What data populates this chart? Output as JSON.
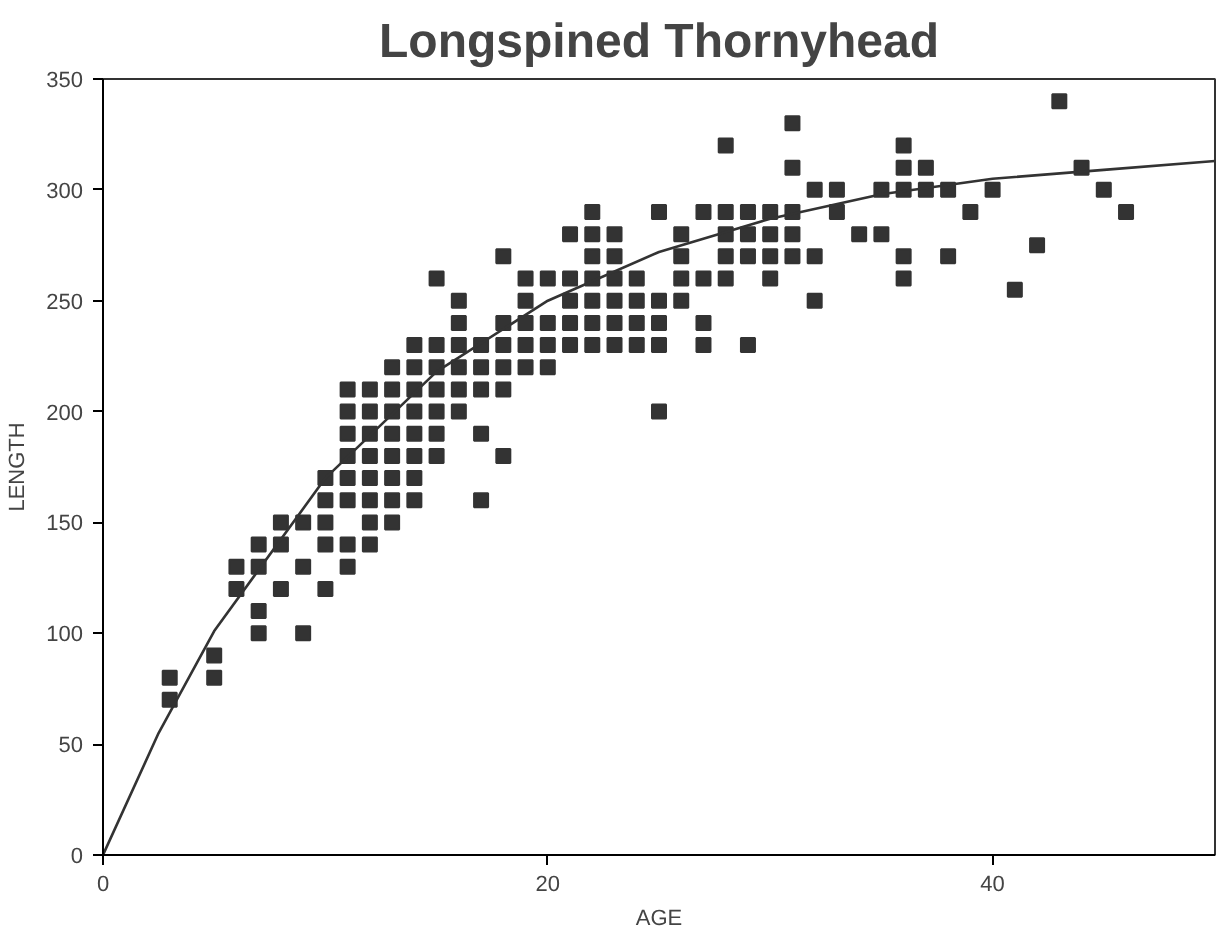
{
  "chart_data": {
    "type": "scatter",
    "title": "Longspined Thornyhead",
    "xlabel": "AGE",
    "ylabel": "LENGTH",
    "xlim": [
      0,
      50
    ],
    "ylim": [
      0,
      350
    ],
    "xticks": [
      0,
      20,
      40
    ],
    "yticks": [
      0,
      50,
      100,
      150,
      200,
      250,
      300,
      350
    ],
    "grid": false,
    "marker": "square",
    "series": [
      {
        "color": "#333333",
        "x": [
          3,
          3,
          5,
          5,
          6,
          6,
          7,
          7,
          7,
          7,
          8,
          8,
          8,
          9,
          9,
          9,
          10,
          10,
          10,
          10,
          10,
          11,
          11,
          11,
          11,
          11,
          11,
          11,
          11,
          12,
          12,
          12,
          12,
          12,
          12,
          12,
          12,
          13,
          13,
          13,
          13,
          13,
          13,
          13,
          13,
          14,
          14,
          14,
          14,
          14,
          14,
          14,
          14,
          15,
          15,
          15,
          15,
          15,
          15,
          15,
          16,
          16,
          16,
          16,
          16,
          16,
          17,
          17,
          17,
          17,
          17,
          18,
          18,
          18,
          18,
          18,
          18,
          19,
          19,
          19,
          19,
          19,
          20,
          20,
          20,
          20,
          21,
          21,
          21,
          21,
          21,
          22,
          22,
          22,
          22,
          22,
          22,
          22,
          23,
          23,
          23,
          23,
          23,
          23,
          24,
          24,
          24,
          24,
          25,
          25,
          25,
          25,
          25,
          26,
          26,
          26,
          26,
          27,
          27,
          27,
          27,
          28,
          28,
          28,
          28,
          28,
          29,
          29,
          29,
          29,
          30,
          30,
          30,
          30,
          31,
          31,
          31,
          31,
          31,
          32,
          32,
          32,
          33,
          33,
          34,
          35,
          35,
          36,
          36,
          36,
          36,
          36,
          37,
          37,
          38,
          38,
          39,
          40,
          41,
          42,
          43,
          44,
          45,
          46
        ],
        "values": [
          80,
          70,
          90,
          80,
          130,
          120,
          140,
          130,
          110,
          100,
          150,
          140,
          120,
          150,
          130,
          100,
          170,
          160,
          150,
          140,
          120,
          210,
          200,
          190,
          180,
          170,
          160,
          140,
          130,
          210,
          200,
          190,
          180,
          170,
          160,
          150,
          140,
          220,
          210,
          200,
          190,
          180,
          170,
          160,
          150,
          230,
          220,
          210,
          200,
          190,
          180,
          170,
          160,
          260,
          230,
          220,
          210,
          200,
          190,
          180,
          250,
          240,
          230,
          220,
          210,
          200,
          230,
          220,
          210,
          190,
          160,
          270,
          240,
          230,
          220,
          210,
          180,
          260,
          250,
          240,
          230,
          220,
          260,
          240,
          230,
          220,
          280,
          260,
          250,
          240,
          230,
          290,
          280,
          270,
          260,
          250,
          240,
          230,
          280,
          270,
          260,
          250,
          240,
          230,
          260,
          250,
          240,
          230,
          290,
          250,
          240,
          230,
          200,
          280,
          270,
          260,
          250,
          290,
          260,
          240,
          230,
          320,
          290,
          280,
          270,
          260,
          290,
          280,
          270,
          230,
          290,
          280,
          270,
          260,
          330,
          310,
          290,
          280,
          270,
          300,
          270,
          250,
          300,
          290,
          280,
          300,
          280,
          320,
          310,
          300,
          270,
          260,
          310,
          300,
          300,
          270,
          290,
          300,
          255,
          275,
          340,
          310,
          300,
          290
        ]
      },
      {
        "type": "line",
        "color": "#333333",
        "marker": "none",
        "x": [
          0,
          2.5,
          5,
          10,
          15,
          20,
          25,
          30,
          35,
          40,
          45,
          50
        ],
        "values": [
          0,
          55,
          101,
          170,
          218,
          250,
          272,
          287,
          298,
          305,
          309,
          313
        ]
      }
    ]
  }
}
